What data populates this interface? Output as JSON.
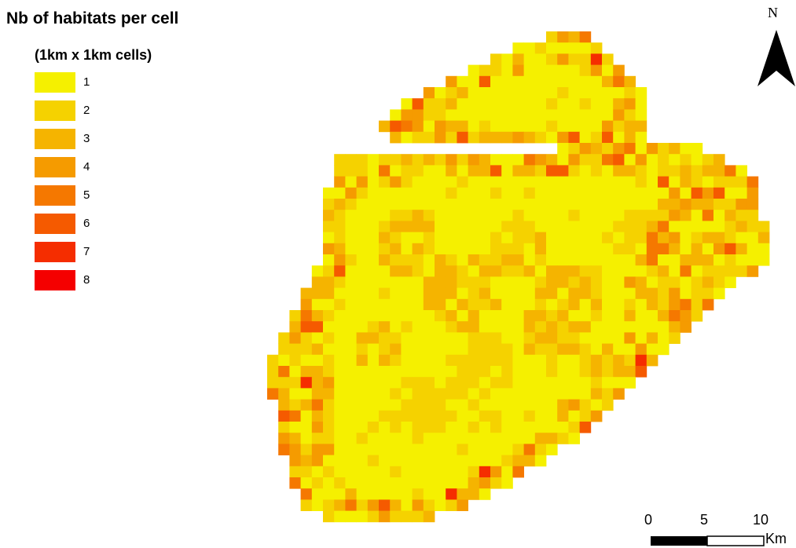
{
  "map_title": "Nb of habitats per cell",
  "legend": {
    "heading": "(1km x 1km cells)",
    "items": [
      {
        "label": "1",
        "color": "#F5F000"
      },
      {
        "label": "2",
        "color": "#F5D200"
      },
      {
        "label": "3",
        "color": "#F5B400"
      },
      {
        "label": "4",
        "color": "#F59B00"
      },
      {
        "label": "5",
        "color": "#F57800"
      },
      {
        "label": "6",
        "color": "#F55A00"
      },
      {
        "label": "7",
        "color": "#F52D00"
      },
      {
        "label": "8",
        "color": "#F50000"
      }
    ]
  },
  "north_label": "N",
  "scale": {
    "ticks": [
      "0",
      "5",
      "10"
    ],
    "unit": "Km"
  }
}
